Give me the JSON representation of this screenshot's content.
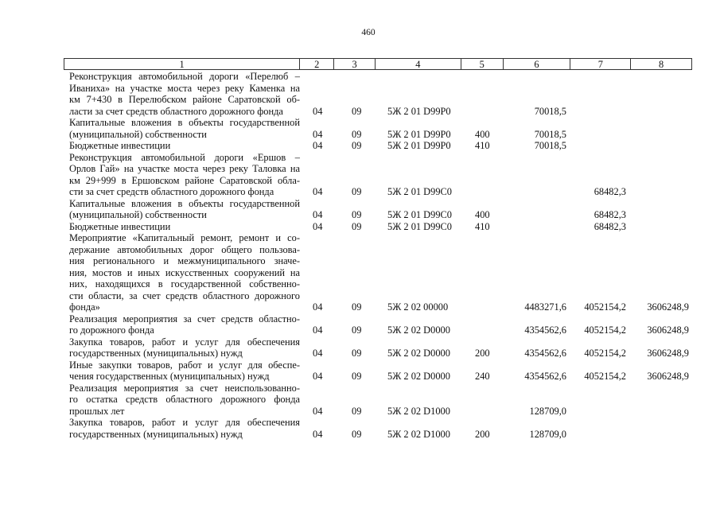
{
  "page_number": "460",
  "header": [
    "1",
    "2",
    "3",
    "4",
    "5",
    "6",
    "7",
    "8"
  ],
  "rows": [
    {
      "lines": [
        "Реконструкция автомобильной дороги «Перелюб –",
        "Иваниха» на участке моста через реку Каменка на",
        "км 7+430 в Перелюбском районе Саратовской об-",
        "ласти за счет средств областного дорожного фонда"
      ],
      "c2": "04",
      "c3": "09",
      "c4": "5Ж 2 01 D99P0",
      "c5": "",
      "c6": "70018,5",
      "c7": "",
      "c8": ""
    },
    {
      "lines": [
        "Капитальные вложения в объекты государственной",
        "(муниципальной) собственности"
      ],
      "c2": "04",
      "c3": "09",
      "c4": "5Ж 2 01 D99P0",
      "c5": "400",
      "c6": "70018,5",
      "c7": "",
      "c8": ""
    },
    {
      "lines": [
        "Бюджетные инвестиции"
      ],
      "c2": "04",
      "c3": "09",
      "c4": "5Ж 2 01 D99P0",
      "c5": "410",
      "c6": "70018,5",
      "c7": "",
      "c8": ""
    },
    {
      "lines": [
        "Реконструкция автомобильной дороги «Ершов –",
        "Орлов Гай» на участке моста через реку Таловка на",
        "км 29+999 в Ершовском районе Саратовской обла-",
        "сти за счет средств областного дорожного фонда"
      ],
      "c2": "04",
      "c3": "09",
      "c4": "5Ж 2 01 D99C0",
      "c5": "",
      "c6": "",
      "c7": "68482,3",
      "c8": ""
    },
    {
      "lines": [
        "Капитальные вложения в объекты государственной",
        "(муниципальной) собственности"
      ],
      "c2": "04",
      "c3": "09",
      "c4": "5Ж 2 01 D99C0",
      "c5": "400",
      "c6": "",
      "c7": "68482,3",
      "c8": ""
    },
    {
      "lines": [
        "Бюджетные инвестиции"
      ],
      "c2": "04",
      "c3": "09",
      "c4": "5Ж 2 01 D99C0",
      "c5": "410",
      "c6": "",
      "c7": "68482,3",
      "c8": ""
    },
    {
      "lines": [
        "Мероприятие «Капитальный ремонт, ремонт и со-",
        "держание автомобильных дорог общего пользова-",
        "ния регионального и межмуниципального значе-",
        "ния, мостов и иных искусственных сооружений на",
        "них, находящихся в государственной собственно-",
        "сти области, за счет средств областного дорожного",
        "фонда»"
      ],
      "c2": "04",
      "c3": "09",
      "c4": "5Ж 2 02 00000",
      "c5": "",
      "c6": "4483271,6",
      "c7": "4052154,2",
      "c8": "3606248,9"
    },
    {
      "lines": [
        "Реализация мероприятия за счет средств областно-",
        "го дорожного фонда"
      ],
      "c2": "04",
      "c3": "09",
      "c4": "5Ж 2 02 D0000",
      "c5": "",
      "c6": "4354562,6",
      "c7": "4052154,2",
      "c8": "3606248,9"
    },
    {
      "lines": [
        "Закупка товаров, работ и услуг для обеспечения",
        "государственных (муниципальных) нужд"
      ],
      "c2": "04",
      "c3": "09",
      "c4": "5Ж 2 02 D0000",
      "c5": "200",
      "c6": "4354562,6",
      "c7": "4052154,2",
      "c8": "3606248,9"
    },
    {
      "lines": [
        "Иные закупки товаров, работ и услуг для обеспе-",
        "чения государственных (муниципальных) нужд"
      ],
      "c2": "04",
      "c3": "09",
      "c4": "5Ж 2 02 D0000",
      "c5": "240",
      "c6": "4354562,6",
      "c7": "4052154,2",
      "c8": "3606248,9"
    },
    {
      "lines": [
        "Реализация мероприятия за счет неиспользованно-",
        "го остатка средств областного дорожного фонда",
        "прошлых лет"
      ],
      "c2": "04",
      "c3": "09",
      "c4": "5Ж 2 02 D1000",
      "c5": "",
      "c6": "128709,0",
      "c7": "",
      "c8": ""
    },
    {
      "lines": [
        "Закупка товаров, работ и услуг для обеспечения",
        "государственных (муниципальных) нужд"
      ],
      "c2": "04",
      "c3": "09",
      "c4": "5Ж 2 02 D1000",
      "c5": "200",
      "c6": "128709,0",
      "c7": "",
      "c8": ""
    }
  ]
}
